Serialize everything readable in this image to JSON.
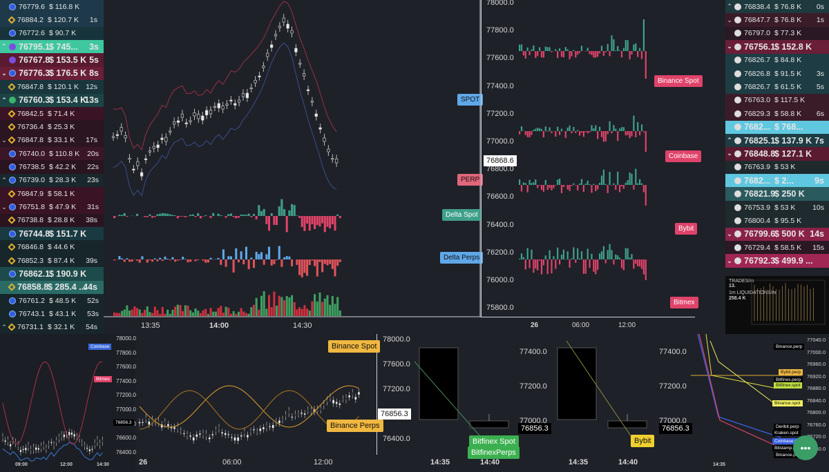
{
  "left_trades": [
    {
      "arrow": "",
      "ex": "cb",
      "price": "76779.6",
      "vol": "$ 116.8 K",
      "time": "",
      "bg": "#1e3a4a",
      "big": false
    },
    {
      "arrow": "",
      "ex": "bn",
      "price": "76884.2",
      "vol": "$ 120.7 K",
      "time": "1s",
      "bg": "#1e3a4a",
      "big": false
    },
    {
      "arrow": "",
      "ex": "cb",
      "price": "76772.6",
      "vol": "$ 90.7 K",
      "time": "",
      "bg": "#17343c",
      "big": false
    },
    {
      "arrow": "^",
      "ex": "kr",
      "price": "76795.1",
      "vol": "$ 745...",
      "time": "3s",
      "bg": "#3fc7a0",
      "big": true
    },
    {
      "arrow": "",
      "ex": "kr",
      "price": "76767.8",
      "vol": "$ 153.5 K",
      "time": "5s",
      "bg": "#5a1a30",
      "big": true
    },
    {
      "arrow": "v",
      "ex": "cb",
      "price": "76776.3",
      "vol": "$ 176.5 K",
      "time": "8s",
      "bg": "#6a1e38",
      "big": true
    },
    {
      "arrow": "",
      "ex": "bn",
      "price": "76847.8",
      "vol": "$ 120.1 K",
      "time": "12s",
      "bg": "#19363d",
      "big": false
    },
    {
      "arrow": "^",
      "ex": "bf",
      "price": "76760.3",
      "vol": "$ 153.4 K",
      "time": "13s",
      "bg": "#1c4446",
      "big": true
    },
    {
      "arrow": "",
      "ex": "bn",
      "price": "76842.5",
      "vol": "$ 71.4 K",
      "time": "",
      "bg": "#3a1424",
      "big": false
    },
    {
      "arrow": "",
      "ex": "bn",
      "price": "76736.4",
      "vol": "$ 25.3 K",
      "time": "",
      "bg": "#2a1520",
      "big": false
    },
    {
      "arrow": "v",
      "ex": "bn",
      "price": "76847.8",
      "vol": "$ 33.1 K",
      "time": "17s",
      "bg": "#2c1522",
      "big": false
    },
    {
      "arrow": "",
      "ex": "cb",
      "price": "76740.0",
      "vol": "$ 110.8 K",
      "time": "20s",
      "bg": "#3a1626",
      "big": false
    },
    {
      "arrow": "",
      "ex": "cb",
      "price": "76738.5",
      "vol": "$ 42.2 K",
      "time": "22s",
      "bg": "#2a1420",
      "big": false
    },
    {
      "arrow": "^",
      "ex": "cb",
      "price": "76739.0",
      "vol": "$ 28.3 K",
      "time": "23s",
      "bg": "#18282c",
      "big": false
    },
    {
      "arrow": "",
      "ex": "bn",
      "price": "76847.9",
      "vol": "$ 58.1 K",
      "time": "",
      "bg": "#3a1424",
      "big": false
    },
    {
      "arrow": "v",
      "ex": "cb",
      "price": "76751.8",
      "vol": "$ 47.9 K",
      "time": "31s",
      "bg": "#3a1424",
      "big": false
    },
    {
      "arrow": "",
      "ex": "bn",
      "price": "76738.8",
      "vol": "$ 28.8 K",
      "time": "38s",
      "bg": "#2a1420",
      "big": false
    },
    {
      "arrow": "",
      "ex": "cb",
      "price": "76744.8",
      "vol": "$ 151.7 K",
      "time": "",
      "bg": "#1a3a42",
      "big": true
    },
    {
      "arrow": "",
      "ex": "bn",
      "price": "76846.8",
      "vol": "$ 44.6 K",
      "time": "",
      "bg": "#17262a",
      "big": false
    },
    {
      "arrow": "",
      "ex": "bn",
      "price": "76852.3",
      "vol": "$ 87.4 K",
      "time": "39s",
      "bg": "#17262a",
      "big": false
    },
    {
      "arrow": "",
      "ex": "cb",
      "price": "76862.1",
      "vol": "$ 190.9 K",
      "time": "",
      "bg": "#1d4a4a",
      "big": true
    },
    {
      "arrow": "",
      "ex": "bn",
      "price": "76858.8",
      "vol": "$ 285.4 ...",
      "time": "44s",
      "bg": "#2a6b66",
      "big": true
    },
    {
      "arrow": "",
      "ex": "cb",
      "price": "76761.2",
      "vol": "$ 48.5 K",
      "time": "52s",
      "bg": "#17262a",
      "big": false
    },
    {
      "arrow": "",
      "ex": "cb",
      "price": "76743.1",
      "vol": "$ 43.1 K",
      "time": "53s",
      "bg": "#17262a",
      "big": false
    },
    {
      "arrow": "^",
      "ex": "bn",
      "price": "76731.1",
      "vol": "$ 32.1 K",
      "time": "54s",
      "bg": "#17262a",
      "big": false
    }
  ],
  "right_trades": [
    {
      "arrow": "^",
      "ex": "ok",
      "price": "76838.4",
      "vol": "$ 76.8 K",
      "time": "0s",
      "bg": "#1e3a3e",
      "big": false
    },
    {
      "arrow": "v",
      "ex": "ok",
      "price": "76847.7",
      "vol": "$ 76.8 K",
      "time": "1s",
      "bg": "#3a1c28",
      "big": false
    },
    {
      "arrow": "",
      "ex": "ok",
      "price": "76797.0",
      "vol": "$ 77.3 K",
      "time": "",
      "bg": "#2a1824",
      "big": false
    },
    {
      "arrow": "v",
      "ex": "ok",
      "price": "76756.1",
      "vol": "$ 152.8 K",
      "time": "",
      "bg": "#6a1e38",
      "big": true
    },
    {
      "arrow": "",
      "ex": "ok",
      "price": "76826.7",
      "vol": "$ 84.8 K",
      "time": "",
      "bg": "#1e3c44",
      "big": false
    },
    {
      "arrow": "",
      "ex": "ok",
      "price": "76826.8",
      "vol": "$ 91.5 K",
      "time": "3s",
      "bg": "#1e3c44",
      "big": false
    },
    {
      "arrow": "",
      "ex": "ok",
      "price": "76826.7",
      "vol": "$ 61.5 K",
      "time": "5s",
      "bg": "#1e3c44",
      "big": false
    },
    {
      "arrow": "",
      "ex": "ok",
      "price": "76763.0",
      "vol": "$ 117.5 K",
      "time": "",
      "bg": "#3a1c28",
      "big": false
    },
    {
      "arrow": "",
      "ex": "ok",
      "price": "76829.3",
      "vol": "$ 58.8 K",
      "time": "6s",
      "bg": "#3a1c28",
      "big": false
    },
    {
      "arrow": "",
      "ex": "ok",
      "price": "7682...",
      "vol": "$ 768...",
      "time": "",
      "bg": "#5fc8e0",
      "big": true
    },
    {
      "arrow": "^",
      "ex": "ok",
      "price": "76825.1",
      "vol": "$ 137.9 K",
      "time": "7s",
      "bg": "#1e3c44",
      "big": true
    },
    {
      "arrow": "v",
      "ex": "ok",
      "price": "76848.8",
      "vol": "$ 127.1 K",
      "time": "",
      "bg": "#5a1a30",
      "big": true
    },
    {
      "arrow": "",
      "ex": "ok",
      "price": "76763.9",
      "vol": "$ 53 K",
      "time": "",
      "bg": "#1e2a2e",
      "big": false
    },
    {
      "arrow": "",
      "ex": "ok",
      "price": "7682...",
      "vol": "$ 2...",
      "time": "9s",
      "bg": "#5fc8e0",
      "big": true
    },
    {
      "arrow": "",
      "ex": "ok",
      "price": "76821.9",
      "vol": "$ 250 K",
      "time": "",
      "bg": "#2a5a5e",
      "big": true
    },
    {
      "arrow": "",
      "ex": "ok",
      "price": "76753.9",
      "vol": "$ 53 K",
      "time": "10s",
      "bg": "#1e2a2e",
      "big": false
    },
    {
      "arrow": "",
      "ex": "ok",
      "price": "76800.4",
      "vol": "$ 95.5 K",
      "time": "",
      "bg": "#1e2a2e",
      "big": false
    },
    {
      "arrow": "v",
      "ex": "ok",
      "price": "76799.6",
      "vol": "$ 500 K",
      "time": "14s",
      "bg": "#8a2248",
      "big": true
    },
    {
      "arrow": "",
      "ex": "ok",
      "price": "76729.4",
      "vol": "$ 58.5 K",
      "time": "15s",
      "bg": "#2a1824",
      "big": false
    },
    {
      "arrow": "v",
      "ex": "ok",
      "price": "76792.3",
      "vol": "$ 499.9 ...",
      "time": "",
      "bg": "#a02654",
      "big": true
    }
  ],
  "main_chart": {
    "tags": {
      "spot": "SPOT",
      "perp": "PERP",
      "delta_spot": "Delta Spot",
      "delta_perps": "Delta Perps"
    },
    "x_ticks": [
      "13:35",
      "14:00",
      "14:30"
    ]
  },
  "exch_chart": {
    "y_ticks": [
      "78000.0",
      "77800.0",
      "77600.0",
      "77400.0",
      "77200.0",
      "77000.0",
      "76800.0",
      "76600.0",
      "76400.0",
      "76200.0",
      "76000.0",
      "75800.0"
    ],
    "current_price": "76868.6",
    "tags": [
      "Binance Spot",
      "Coinbase",
      "Bybit",
      "Bitmex"
    ],
    "x_ticks": [
      "26",
      "06:00",
      "12:00"
    ]
  },
  "mini_stats": {
    "trades": "TRADES/m",
    "trades_val": "13.",
    "liq": "1m LIQUIDATIONS/m",
    "liq_val": "258.4 K"
  },
  "bottom1": {
    "y_ticks": [
      "78000.0",
      "77800.0",
      "77600.0",
      "77400.0",
      "77200.0",
      "77000.0",
      "76800.0",
      "76600.0",
      "76400.0"
    ],
    "price": "76856.3",
    "tags": [
      "Coinbase",
      "Bitmex"
    ],
    "x_ticks": [
      "09:00",
      "12:00",
      "14:30"
    ]
  },
  "bottom2": {
    "y_ticks": [
      "78000.0",
      "77600.0",
      "77200.0",
      "76800.0",
      "76400.0"
    ],
    "price": "76856.3",
    "tags": [
      "Binance Spot",
      "Binance Perps"
    ],
    "x_ticks": [
      "26",
      "06:00",
      "12:00"
    ]
  },
  "bottom3": {
    "tags": [
      "Bitfinex Spot",
      "BitfinexPerps"
    ],
    "x_ticks": [
      "14:35",
      "14:40"
    ]
  },
  "bottom4": {
    "y_ticks": [
      "77400.0",
      "77200.0",
      "77000.0"
    ],
    "price": "76856.3",
    "tag": "Bybit",
    "x_ticks": [
      "14:35",
      "14:40"
    ]
  },
  "bottom5": {
    "y_ticks": [
      "77400.0",
      "77200.0",
      "77000.0"
    ],
    "price": "76856.3"
  },
  "bottom6": {
    "y_ticks": [
      "77040.0",
      "77000.0",
      "76960.0",
      "76920.0",
      "76880.0",
      "76840.0",
      "76800.0",
      "76760.0",
      "76720.0",
      "76680.0"
    ],
    "tags": [
      "Binance.perp",
      "Bybit.perp",
      "Bitfinex.perp",
      "Bitfinex.spot",
      "Binance.spot",
      "Deribit.perp",
      "Kraken.spot",
      "Coinbase.spot",
      "Bitstamp.spot",
      "Binance.perp"
    ],
    "x_tick": "14:35"
  },
  "fab_label": "•••"
}
